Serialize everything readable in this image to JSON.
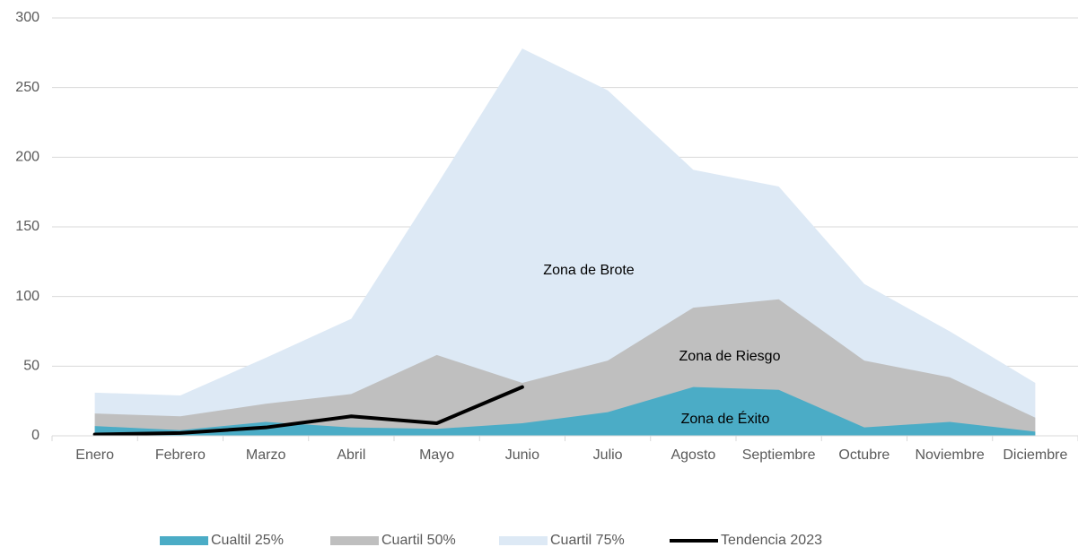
{
  "chart_data": {
    "type": "area",
    "categories": [
      "Enero",
      "Febrero",
      "Marzo",
      "Abril",
      "Mayo",
      "Junio",
      "Julio",
      "Agosto",
      "Septiembre",
      "Octubre",
      "Noviembre",
      "Diciembre"
    ],
    "series": [
      {
        "name": "Cualtil 25%",
        "color": "#4bacc6",
        "type": "area",
        "values": [
          7,
          4,
          10,
          6,
          5,
          9,
          17,
          35,
          33,
          6,
          10,
          3
        ]
      },
      {
        "name": "Cuartil 50%",
        "color": "#bfbfbf",
        "type": "area",
        "values": [
          16,
          14,
          23,
          30,
          58,
          38,
          54,
          92,
          98,
          54,
          42,
          13
        ]
      },
      {
        "name": "Cuartil 75%",
        "color": "#dde9f5",
        "type": "area",
        "values": [
          31,
          29,
          56,
          84,
          180,
          278,
          248,
          191,
          179,
          109,
          75,
          38
        ]
      },
      {
        "name": "Tendencia 2023",
        "color": "#000000",
        "type": "line",
        "values": [
          1,
          2,
          6,
          14,
          9,
          35,
          null,
          null,
          null,
          null,
          null,
          null
        ]
      }
    ],
    "annotations": [
      "Zona de Brote",
      "Zona de Riesgo",
      "Zona de Éxito"
    ],
    "ylim": [
      0,
      300
    ],
    "yticks": [
      0,
      50,
      100,
      150,
      200,
      250,
      300
    ],
    "grid": true,
    "legend": "bottom"
  }
}
